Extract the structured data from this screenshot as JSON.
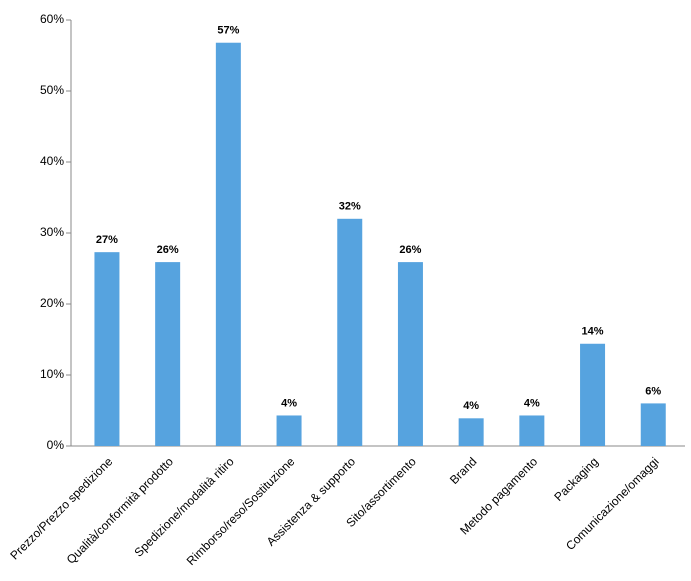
{
  "chart_data": {
    "type": "bar",
    "categories": [
      "Prezzo/Prezzo spedizione",
      "Qualità/conformità prodotto",
      "Spedizione/modalità ritiro",
      "Rimborso/reso/Sostituzione",
      "Assistenza & supporto",
      "Sito/assortimento",
      "Brand",
      "Metodo pagamento",
      "Packaging",
      "Comunicazione/omaggi"
    ],
    "values": [
      27.3,
      25.9,
      56.8,
      4.3,
      32,
      25.9,
      3.9,
      4.3,
      14.4,
      6
    ],
    "value_labels": [
      "27%",
      "26%",
      "57%",
      "4%",
      "32%",
      "26%",
      "4%",
      "4%",
      "14%",
      "6%"
    ],
    "color": "#56a3df",
    "ylim": [
      0,
      60
    ],
    "yticks": [
      {
        "value": 0,
        "label": "0%"
      },
      {
        "value": 10,
        "label": "10%"
      },
      {
        "value": 20,
        "label": "20%"
      },
      {
        "value": 30,
        "label": "30%"
      },
      {
        "value": 40,
        "label": "40%"
      },
      {
        "value": 50,
        "label": "50%"
      },
      {
        "value": 60,
        "label": "60%"
      }
    ],
    "grid": false
  }
}
